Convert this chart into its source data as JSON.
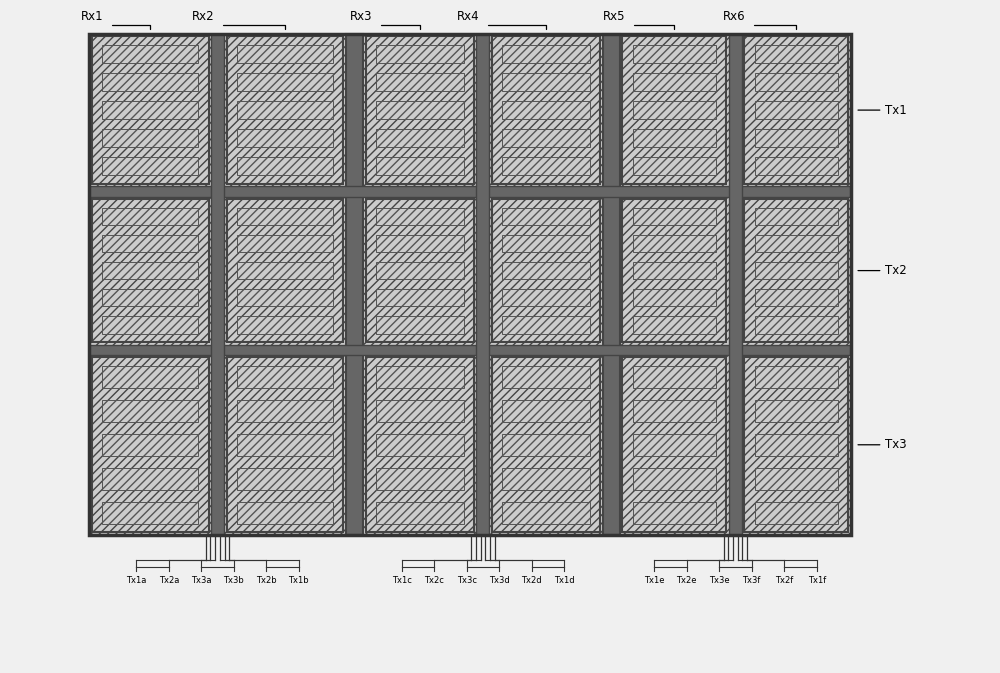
{
  "fig_width": 10.0,
  "fig_height": 6.73,
  "bg_color": "#f0f0f0",
  "hatch_fc": "#cccccc",
  "hatch_pattern": "////",
  "outline_color": "#555555",
  "dark_sep_color": "#555555",
  "rx_labels": [
    "Rx1",
    "Rx2",
    "Rx3",
    "Rx4",
    "Rx5",
    "Rx6"
  ],
  "tx_labels": [
    "Tx1",
    "Tx2",
    "Tx3"
  ],
  "bottom_labels_group1": [
    "Tx1a",
    "Tx2a",
    "Tx3a",
    "Tx3b",
    "Tx2b",
    "Tx1b"
  ],
  "bottom_labels_group2": [
    "Tx1c",
    "Tx2c",
    "Tx3c",
    "Tx3d",
    "Tx2d",
    "Tx1d"
  ],
  "bottom_labels_group3": [
    "Tx1e",
    "Tx2e",
    "Tx3e",
    "Tx3f",
    "Tx2f",
    "Tx1f"
  ]
}
